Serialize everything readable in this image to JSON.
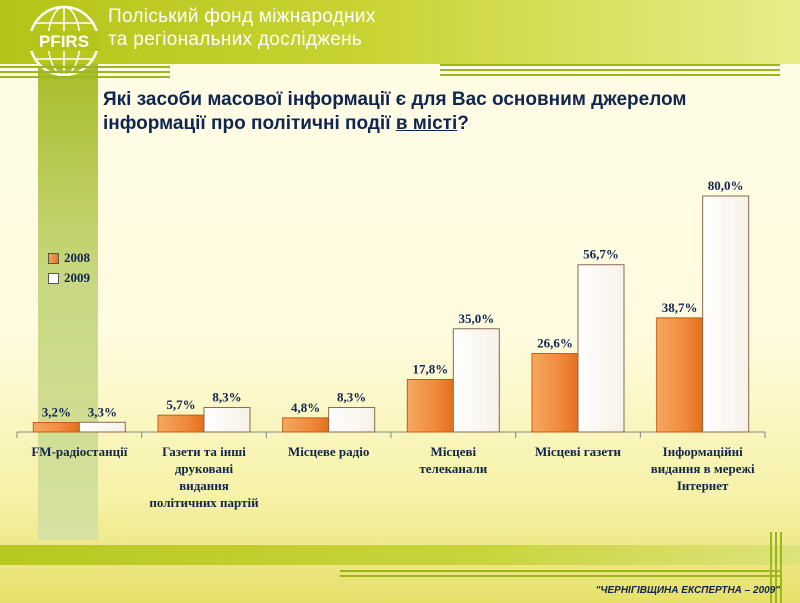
{
  "header": {
    "org_name_line1": "Поліський фонд міжнародних",
    "org_name_line2": "та регіональних досліджень",
    "logo_text": "PFIRS"
  },
  "question": {
    "text_before": "Які засоби масової інформації є для Вас основним джерелом інформації про політичні події ",
    "text_underlined": "в місті",
    "text_after": "?"
  },
  "footer": {
    "text": "\"ЧЕРНІГІВЩИНА ЕКСПЕРТНА – 2009\""
  },
  "colors": {
    "series_2008": "#f08a3c",
    "series_2009": "#ffffff",
    "accent_green": "#b5c418",
    "text_navy": "#10254f"
  },
  "chart_data": {
    "type": "bar",
    "categories": [
      [
        "FM-радіостанції"
      ],
      [
        "Газети та інші",
        "друковані",
        "видання",
        "політичних партій"
      ],
      [
        "Місцеве радіо"
      ],
      [
        "Місцеві",
        "телеканали"
      ],
      [
        "Місцеві газети"
      ],
      [
        "Інформаційні",
        "видання в мережі",
        "Інтернет"
      ]
    ],
    "series": [
      {
        "name": "2008",
        "values": [
          3.2,
          5.7,
          4.8,
          17.8,
          26.6,
          38.7
        ],
        "labels": [
          "3,2%",
          "5,7%",
          "4,8%",
          "17,8%",
          "26,6%",
          "38,7%"
        ]
      },
      {
        "name": "2009",
        "values": [
          3.3,
          8.3,
          8.3,
          35.0,
          56.7,
          80.0
        ],
        "labels": [
          "3,3%",
          "8,3%",
          "8,3%",
          "35,0%",
          "56,7%",
          "80,0%"
        ]
      }
    ],
    "ylim": [
      0,
      80
    ],
    "grid": false,
    "legend_position": "left"
  }
}
